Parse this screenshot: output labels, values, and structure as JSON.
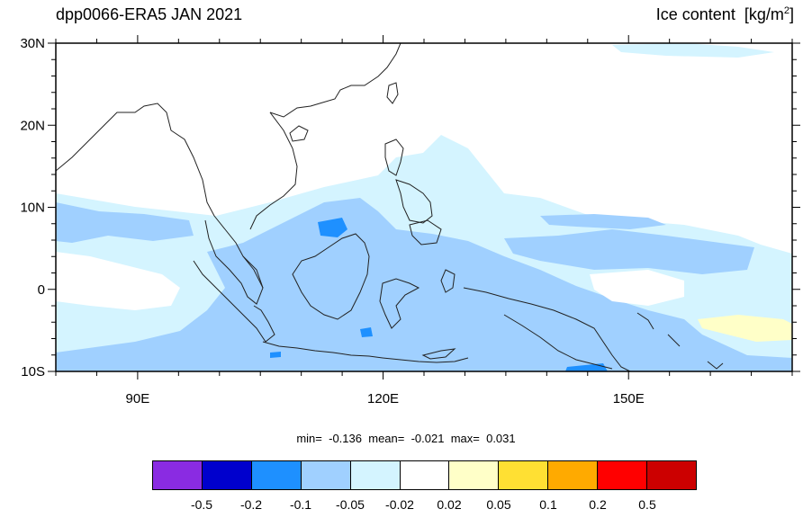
{
  "header": {
    "title": "dpp0066-ERA5 JAN 2021",
    "variable": "Ice content",
    "units_prefix": "[kg/m",
    "units_sup": "2",
    "units_suffix": "]"
  },
  "map": {
    "lon_range": [
      80,
      170
    ],
    "lat_range": [
      -10,
      30
    ],
    "lat_ticks": [
      {
        "value": 30,
        "label": "30N"
      },
      {
        "value": 20,
        "label": "20N"
      },
      {
        "value": 10,
        "label": "10N"
      },
      {
        "value": 0,
        "label": "0"
      },
      {
        "value": -10,
        "label": "10S"
      }
    ],
    "lon_ticks": [
      {
        "value": 90,
        "label": "90E"
      },
      {
        "value": 120,
        "label": "120E"
      },
      {
        "value": 150,
        "label": "150E"
      }
    ],
    "colors": {
      "frame": "#000000",
      "coast": "#222222"
    }
  },
  "stats": {
    "min_label": "min=",
    "min": "-0.136",
    "mean_label": "mean=",
    "mean": "-0.021",
    "max_label": "max=",
    "max": "0.031"
  },
  "colorbar": {
    "colors": [
      "#8a2be2",
      "#0000cd",
      "#1e90ff",
      "#a0d0ff",
      "#d4f4ff",
      "#ffffff",
      "#ffffc8",
      "#ffe033",
      "#ffaa00",
      "#ff0000",
      "#cc0000"
    ],
    "labels": [
      "-0.5",
      "-0.2",
      "-0.1",
      "-0.05",
      "-0.02",
      "0.02",
      "0.05",
      "0.1",
      "0.2",
      "0.5"
    ]
  }
}
